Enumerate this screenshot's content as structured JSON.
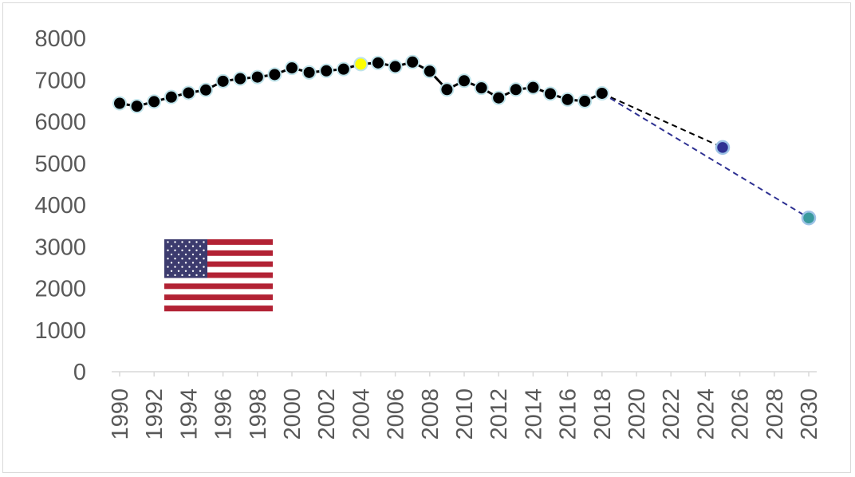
{
  "chart_data": {
    "type": "line",
    "title": "",
    "xlabel": "",
    "ylabel": "",
    "xlim": [
      1990,
      2030
    ],
    "ylim": [
      0,
      8000
    ],
    "y_ticks": [
      0,
      1000,
      2000,
      3000,
      4000,
      5000,
      6000,
      7000,
      8000
    ],
    "x_ticks": [
      1990,
      1992,
      1994,
      1996,
      1998,
      2000,
      2002,
      2004,
      2006,
      2008,
      2010,
      2012,
      2014,
      2016,
      2018,
      2020,
      2022,
      2024,
      2026,
      2028,
      2030
    ],
    "grid": false,
    "legend": "none",
    "series": [
      {
        "style": "solid",
        "color": "#000000",
        "marker_fill": "#000000",
        "marker_edge": "#bfe3ea",
        "x": [
          1990,
          1991,
          1992,
          1993,
          1994,
          1995,
          1996,
          1997,
          1998,
          1999,
          2000,
          2001,
          2002,
          2003,
          2004,
          2005,
          2006,
          2007,
          2008,
          2009,
          2010,
          2011,
          2012,
          2013,
          2014,
          2015,
          2016,
          2017,
          2018
        ],
        "values": [
          6440,
          6370,
          6480,
          6590,
          6690,
          6760,
          6970,
          7030,
          7070,
          7130,
          7290,
          7180,
          7220,
          7260,
          7380,
          7410,
          7320,
          7430,
          7210,
          6770,
          6980,
          6810,
          6570,
          6770,
          6820,
          6670,
          6530,
          6490,
          6680
        ],
        "highlight": {
          "x": 2004,
          "color": "#ffff00"
        }
      },
      {
        "style": "dashed",
        "color": "#000000",
        "x": [
          2018,
          2025
        ],
        "values": [
          6680,
          5380
        ],
        "end_marker_fill": "#2e3192",
        "end_marker_edge": "#9dc3e6"
      },
      {
        "style": "dashed",
        "color": "#2e3192",
        "x": [
          2018,
          2030
        ],
        "values": [
          6680,
          3690
        ],
        "end_marker_fill": "#3a9a9e",
        "end_marker_edge": "#9dc3e6"
      }
    ]
  },
  "flag": {
    "icon": "us-flag-icon",
    "red": "#b22234",
    "white": "#ffffff",
    "blue": "#3c3b6e"
  },
  "colors": {
    "axis": "#d9d9d9",
    "tick_text": "#595959"
  }
}
